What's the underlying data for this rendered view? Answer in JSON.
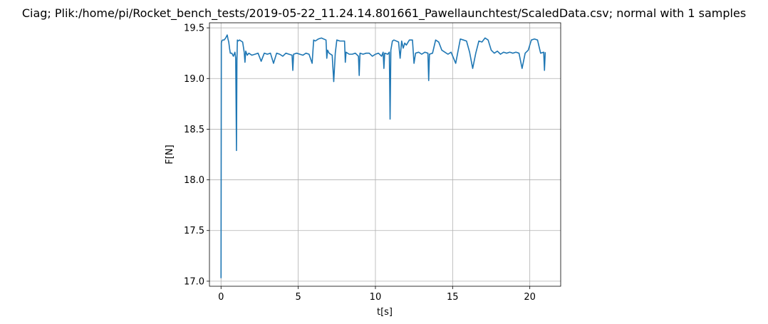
{
  "chart_data": {
    "type": "line",
    "title": "Ciag; Plik:/home/pi/Rocket_bench_tests/2019-05-22_11.24.14.801661_Pawellaunchtest/ScaledData.csv; normal with 1 samples",
    "xlabel": "t[s]",
    "ylabel": "F[N]",
    "xlim": [
      -0.75,
      22.0
    ],
    "ylim": [
      16.95,
      19.55
    ],
    "xticks": [
      0,
      5,
      10,
      15,
      20
    ],
    "xtick_labels": [
      "0",
      "5",
      "10",
      "15",
      "20"
    ],
    "yticks": [
      17.0,
      17.5,
      18.0,
      18.5,
      19.0,
      19.5
    ],
    "ytick_labels": [
      "17.0",
      "17.5",
      "18.0",
      "18.5",
      "19.0",
      "19.5"
    ],
    "grid": true,
    "color": "#1f77b4",
    "series": [
      {
        "x": [
          0.0,
          0.02,
          0.05,
          0.1,
          0.2,
          0.3,
          0.4,
          0.45,
          0.5,
          0.55,
          0.6,
          0.7,
          0.8,
          0.9,
          0.95,
          1.0,
          1.03,
          1.06,
          1.1,
          1.2,
          1.3,
          1.4,
          1.5,
          1.55,
          1.6,
          1.7,
          1.8,
          2.0,
          2.2,
          2.4,
          2.6,
          2.8,
          3.0,
          3.2,
          3.4,
          3.6,
          3.8,
          4.0,
          4.2,
          4.4,
          4.6,
          4.65,
          4.7,
          4.9,
          5.1,
          5.3,
          5.5,
          5.7,
          5.9,
          6.0,
          6.1,
          6.3,
          6.5,
          6.8,
          6.85,
          6.9,
          7.0,
          7.2,
          7.3,
          7.4,
          7.5,
          7.7,
          8.0,
          8.05,
          8.1,
          8.3,
          8.5,
          8.7,
          8.9,
          8.95,
          9.0,
          9.2,
          9.4,
          9.6,
          9.8,
          10.0,
          10.2,
          10.4,
          10.5,
          10.55,
          10.6,
          10.8,
          10.9,
          10.95,
          11.0,
          11.1,
          11.2,
          11.5,
          11.6,
          11.7,
          11.8,
          11.9,
          12.0,
          12.2,
          12.4,
          12.5,
          12.6,
          12.8,
          13.0,
          13.2,
          13.4,
          13.45,
          13.5,
          13.7,
          13.9,
          14.1,
          14.3,
          14.5,
          14.7,
          14.9,
          15.2,
          15.5,
          15.7,
          15.9,
          16.1,
          16.3,
          16.5,
          16.7,
          16.9,
          17.1,
          17.3,
          17.5,
          17.7,
          17.9,
          18.1,
          18.3,
          18.5,
          18.7,
          18.9,
          19.1,
          19.3,
          19.5,
          19.7,
          19.9,
          20.1,
          20.3,
          20.5,
          20.7,
          20.9,
          20.95,
          21.0
        ],
        "y": [
          17.03,
          19.35,
          19.37,
          19.38,
          19.38,
          19.4,
          19.43,
          19.39,
          19.36,
          19.3,
          19.25,
          19.25,
          19.22,
          19.26,
          19.2,
          18.29,
          19.18,
          19.38,
          19.37,
          19.38,
          19.37,
          19.36,
          19.26,
          19.16,
          19.27,
          19.23,
          19.25,
          19.23,
          19.24,
          19.25,
          19.17,
          19.25,
          19.24,
          19.25,
          19.15,
          19.25,
          19.24,
          19.22,
          19.25,
          19.24,
          19.23,
          19.08,
          19.24,
          19.25,
          19.24,
          19.23,
          19.25,
          19.24,
          19.15,
          19.38,
          19.37,
          19.39,
          19.4,
          19.38,
          19.2,
          19.28,
          19.25,
          19.23,
          18.97,
          19.25,
          19.38,
          19.37,
          19.37,
          19.16,
          19.26,
          19.24,
          19.24,
          19.25,
          19.22,
          19.03,
          19.25,
          19.24,
          19.25,
          19.25,
          19.22,
          19.24,
          19.25,
          19.22,
          19.26,
          19.1,
          19.25,
          19.24,
          19.26,
          18.6,
          19.28,
          19.37,
          19.38,
          19.36,
          19.2,
          19.37,
          19.3,
          19.35,
          19.33,
          19.38,
          19.38,
          19.15,
          19.25,
          19.26,
          19.24,
          19.26,
          19.25,
          18.98,
          19.24,
          19.25,
          19.38,
          19.36,
          19.28,
          19.26,
          19.24,
          19.26,
          19.15,
          19.39,
          19.38,
          19.37,
          19.26,
          19.1,
          19.25,
          19.37,
          19.36,
          19.4,
          19.38,
          19.28,
          19.25,
          19.27,
          19.24,
          19.26,
          19.25,
          19.26,
          19.25,
          19.26,
          19.25,
          19.1,
          19.25,
          19.28,
          19.38,
          19.39,
          19.38,
          19.25,
          19.26,
          19.08,
          19.26
        ]
      }
    ]
  }
}
